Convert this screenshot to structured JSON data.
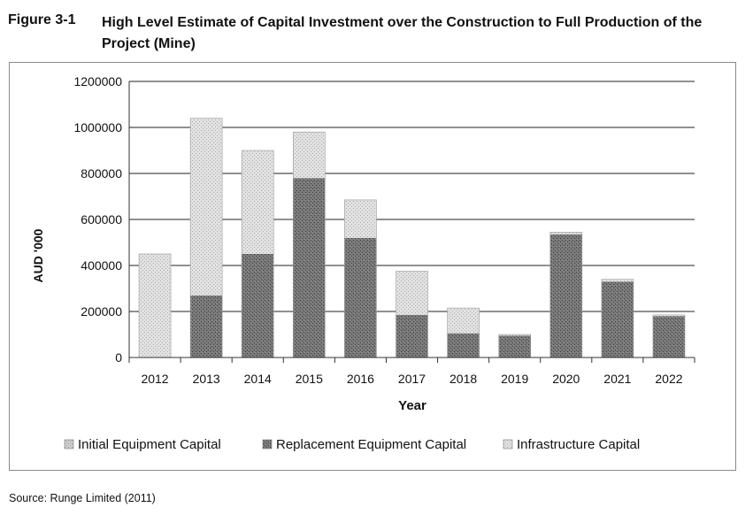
{
  "figure": {
    "label": "Figure 3-1",
    "title": "High Level Estimate of Capital Investment over the Construction to Full Production of the Project (Mine)"
  },
  "source": "Source: Runge Limited (2011)",
  "colors": {
    "initial": "#c4c4c4",
    "replacement": "#6e6e6e",
    "infrastructure": "#d9d9d9",
    "grid": "#222222"
  },
  "chart_data": {
    "type": "bar",
    "stacked": true,
    "title": "",
    "xlabel": "Year",
    "ylabel": "AUD '000",
    "categories": [
      "2012",
      "2013",
      "2014",
      "2015",
      "2016",
      "2017",
      "2018",
      "2019",
      "2020",
      "2021",
      "2022"
    ],
    "ylim": [
      0,
      1200000
    ],
    "yticks": [
      0,
      200000,
      400000,
      600000,
      800000,
      1000000,
      1200000
    ],
    "grid": true,
    "legend_position": "bottom",
    "series": [
      {
        "name": "Initial Equipment Capital",
        "color_key": "initial",
        "values": [
          0,
          0,
          0,
          0,
          0,
          0,
          0,
          0,
          0,
          0,
          0
        ]
      },
      {
        "name": "Replacement Equipment Capital",
        "color_key": "replacement",
        "values": [
          0,
          270000,
          450000,
          780000,
          520000,
          185000,
          105000,
          95000,
          535000,
          330000,
          180000
        ]
      },
      {
        "name": "Infrastructure Capital",
        "color_key": "infrastructure",
        "values": [
          450000,
          770000,
          450000,
          200000,
          165000,
          190000,
          110000,
          5000,
          10000,
          10000,
          5000
        ]
      }
    ]
  }
}
